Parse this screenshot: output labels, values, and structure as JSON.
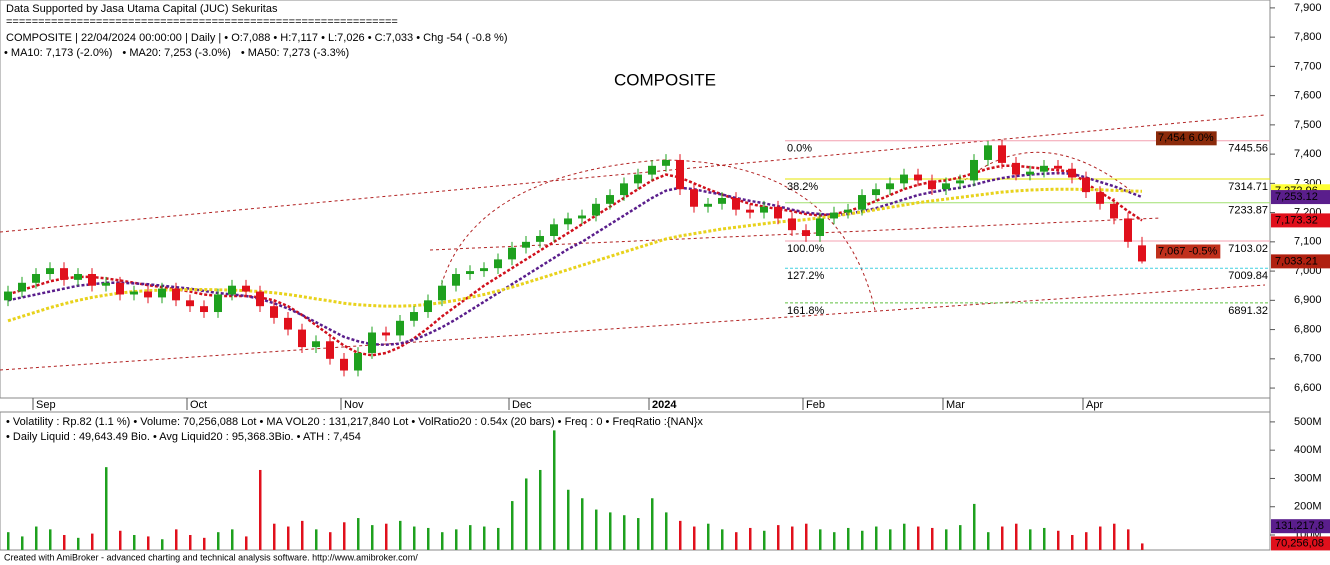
{
  "chart_data": [
    {
      "type": "candlestick",
      "title": "COMPOSITE",
      "header": [
        "Data Supported by Jasa Utama Capital (JUC) Sekuritas",
        "=============================================================",
        "COMPOSITE | 22/04/2024 00:00:00 | Daily | • O:7,088 • H:7,117 • L:7,026 • C:7,033 • Chg -54 ( -0.8 %)"
      ],
      "footer": "Created with AmiBroker - advanced charting and technical analysis software. http://www.amibroker.com/",
      "up_color": "#1ea01e",
      "down_color": "#e0101c",
      "categories": [
        null,
        null,
        "Sep",
        null,
        null,
        null,
        null,
        null,
        null,
        null,
        null,
        null,
        null,
        "Oct",
        null,
        null,
        null,
        null,
        null,
        null,
        null,
        null,
        null,
        null,
        "Nov",
        null,
        null,
        null,
        null,
        null,
        null,
        null,
        null,
        null,
        null,
        null,
        "Dec",
        null,
        null,
        null,
        null,
        null,
        null,
        null,
        null,
        null,
        "2024",
        null,
        null,
        null,
        null,
        null,
        null,
        null,
        null,
        null,
        null,
        "Feb",
        null,
        null,
        null,
        null,
        null,
        null,
        null,
        null,
        null,
        "Mar",
        null,
        null,
        null,
        null,
        null,
        null,
        null,
        null,
        null,
        "Apr",
        null,
        null,
        null,
        null
      ],
      "open": [
        6900,
        6930,
        6960,
        6990,
        7010,
        6970,
        6990,
        6950,
        6960,
        6920,
        6930,
        6910,
        6940,
        6900,
        6880,
        6860,
        6920,
        6950,
        6930,
        6880,
        6840,
        6800,
        6740,
        6760,
        6700,
        6660,
        6720,
        6790,
        6780,
        6830,
        6860,
        6900,
        6950,
        6990,
        7000,
        7010,
        7040,
        7080,
        7100,
        7120,
        7160,
        7180,
        7190,
        7230,
        7260,
        7300,
        7330,
        7360,
        7380,
        7280,
        7220,
        7230,
        7250,
        7210,
        7200,
        7220,
        7180,
        7140,
        7120,
        7180,
        7200,
        7210,
        7260,
        7280,
        7300,
        7330,
        7310,
        7280,
        7300,
        7310,
        7380,
        7430,
        7370,
        7330,
        7340,
        7360,
        7350,
        7320,
        7270,
        7230,
        7180,
        7088
      ],
      "high": [
        6950,
        6980,
        7010,
        7030,
        7030,
        7010,
        7010,
        6980,
        6980,
        6950,
        6950,
        6960,
        6960,
        6920,
        6900,
        6940,
        6970,
        6970,
        6950,
        6900,
        6860,
        6820,
        6780,
        6780,
        6720,
        6740,
        6810,
        6810,
        6850,
        6880,
        6920,
        6970,
        7010,
        7020,
        7030,
        7060,
        7100,
        7120,
        7140,
        7180,
        7200,
        7210,
        7250,
        7280,
        7320,
        7350,
        7380,
        7400,
        7400,
        7300,
        7250,
        7270,
        7270,
        7230,
        7240,
        7240,
        7200,
        7160,
        7200,
        7220,
        7230,
        7280,
        7300,
        7320,
        7350,
        7350,
        7330,
        7320,
        7330,
        7400,
        7445,
        7450,
        7390,
        7360,
        7380,
        7380,
        7370,
        7340,
        7290,
        7250,
        7200,
        7117
      ],
      "low": [
        6880,
        6910,
        6940,
        6970,
        6950,
        6950,
        6930,
        6930,
        6900,
        6900,
        6890,
        6890,
        6880,
        6860,
        6840,
        6840,
        6900,
        6910,
        6860,
        6820,
        6780,
        6720,
        6720,
        6680,
        6640,
        6640,
        6700,
        6760,
        6760,
        6810,
        6840,
        6880,
        6930,
        6970,
        6980,
        6990,
        7020,
        7060,
        7080,
        7100,
        7140,
        7160,
        7170,
        7210,
        7240,
        7280,
        7310,
        7340,
        7260,
        7200,
        7200,
        7210,
        7190,
        7180,
        7180,
        7160,
        7120,
        7100,
        7100,
        7160,
        7180,
        7190,
        7240,
        7260,
        7280,
        7290,
        7260,
        7260,
        7280,
        7290,
        7360,
        7350,
        7310,
        7310,
        7320,
        7330,
        7300,
        7250,
        7210,
        7160,
        7080,
        7026
      ],
      "close": [
        6930,
        6960,
        6990,
        7010,
        6970,
        6990,
        6950,
        6960,
        6920,
        6930,
        6910,
        6940,
        6900,
        6880,
        6860,
        6920,
        6950,
        6930,
        6880,
        6840,
        6800,
        6740,
        6760,
        6700,
        6660,
        6720,
        6790,
        6780,
        6830,
        6860,
        6900,
        6950,
        6990,
        7000,
        7010,
        7040,
        7080,
        7100,
        7120,
        7160,
        7180,
        7190,
        7230,
        7260,
        7300,
        7330,
        7360,
        7380,
        7280,
        7220,
        7230,
        7250,
        7210,
        7200,
        7220,
        7180,
        7140,
        7120,
        7180,
        7200,
        7210,
        7260,
        7280,
        7300,
        7330,
        7310,
        7280,
        7300,
        7310,
        7380,
        7430,
        7370,
        7330,
        7340,
        7360,
        7350,
        7320,
        7270,
        7230,
        7180,
        7100,
        7033
      ],
      "series": [
        {
          "name": "• MA10: 7,173 (-2.0%)",
          "color": "#d0101c",
          "values": [
            6920,
            6935,
            6950,
            6965,
            6975,
            6980,
            6980,
            6975,
            6968,
            6960,
            6952,
            6945,
            6938,
            6930,
            6920,
            6915,
            6915,
            6915,
            6910,
            6900,
            6880,
            6850,
            6815,
            6780,
            6745,
            6720,
            6712,
            6720,
            6740,
            6770,
            6805,
            6845,
            6880,
            6915,
            6950,
            6980,
            7010,
            7040,
            7070,
            7100,
            7130,
            7160,
            7190,
            7220,
            7250,
            7280,
            7310,
            7330,
            7320,
            7300,
            7280,
            7262,
            7245,
            7230,
            7220,
            7212,
            7205,
            7195,
            7190,
            7195,
            7205,
            7220,
            7240,
            7260,
            7280,
            7295,
            7305,
            7310,
            7320,
            7335,
            7350,
            7360,
            7360,
            7355,
            7350,
            7345,
            7340,
            7300,
            7270,
            7240,
            7205,
            7173
          ]
        },
        {
          "name": "• MA20: 7,253 (-3.0%)",
          "color": "#5a1e8c",
          "values": [
            6900,
            6910,
            6920,
            6930,
            6940,
            6950,
            6955,
            6960,
            6960,
            6958,
            6955,
            6950,
            6945,
            6940,
            6932,
            6925,
            6920,
            6915,
            6905,
            6890,
            6872,
            6850,
            6825,
            6800,
            6775,
            6760,
            6750,
            6748,
            6752,
            6765,
            6785,
            6808,
            6835,
            6865,
            6895,
            6925,
            6955,
            6985,
            7015,
            7045,
            7075,
            7100,
            7130,
            7160,
            7190,
            7220,
            7250,
            7275,
            7285,
            7280,
            7270,
            7262,
            7250,
            7240,
            7232,
            7222,
            7210,
            7200,
            7195,
            7192,
            7195,
            7205,
            7215,
            7230,
            7245,
            7260,
            7270,
            7278,
            7285,
            7295,
            7308,
            7318,
            7325,
            7330,
            7333,
            7335,
            7333,
            7320,
            7305,
            7290,
            7272,
            7253
          ]
        },
        {
          "name": "• MA50: 7,273 (-3.3%)",
          "color": "#e8d21c",
          "values": [
            6830,
            6845,
            6860,
            6875,
            6888,
            6900,
            6910,
            6918,
            6925,
            6930,
            6933,
            6935,
            6936,
            6937,
            6937,
            6936,
            6935,
            6933,
            6930,
            6926,
            6920,
            6913,
            6905,
            6898,
            6890,
            6885,
            6882,
            6880,
            6880,
            6882,
            6886,
            6892,
            6900,
            6910,
            6920,
            6932,
            6945,
            6960,
            6975,
            6990,
            7005,
            7020,
            7035,
            7050,
            7065,
            7080,
            7095,
            7110,
            7120,
            7128,
            7136,
            7144,
            7150,
            7156,
            7162,
            7168,
            7172,
            7176,
            7182,
            7188,
            7195,
            7202,
            7210,
            7218,
            7226,
            7234,
            7240,
            7246,
            7252,
            7258,
            7264,
            7270,
            7274,
            7277,
            7279,
            7280,
            7280,
            7279,
            7278,
            7276,
            7274,
            7273
          ]
        }
      ],
      "ylim": [
        6566,
        7927
      ],
      "yticks": [
        {
          "value": 6600,
          "label": "6,600"
        },
        {
          "value": 6700,
          "label": "6,700"
        },
        {
          "value": 6800,
          "label": "6,800"
        },
        {
          "value": 6900,
          "label": "6,900"
        },
        {
          "value": 7000,
          "label": "7,000"
        },
        {
          "value": 7100,
          "label": "7,100"
        },
        {
          "value": 7200,
          "label": "7,200"
        },
        {
          "value": 7300,
          "label": "7,300"
        },
        {
          "value": 7400,
          "label": "7,400"
        },
        {
          "value": 7500,
          "label": "7,500"
        },
        {
          "value": 7600,
          "label": "7,600"
        },
        {
          "value": 7700,
          "label": "7,700"
        },
        {
          "value": 7800,
          "label": "7,800"
        },
        {
          "value": 7900,
          "label": "7,900"
        }
      ],
      "fib_levels": [
        {
          "label": "0.0%",
          "value": 7445.56,
          "color": "#f4a0b0"
        },
        {
          "label": "38.2%",
          "value": 7314.71,
          "color": "#e6e600"
        },
        {
          "value": 7233.87,
          "color": "#a0e070"
        },
        {
          "label": "100.0%",
          "value": 7103.02,
          "color": "#f4a0b0"
        },
        {
          "label": "127.2%",
          "value": 7009.84,
          "color": "#40d0e0"
        },
        {
          "label": "161.8%",
          "value": 6891.32,
          "color": "#60c040"
        }
      ],
      "annotations": [
        {
          "label": "7,454 6.0%",
          "value": 7454,
          "color": "#8b2a0a"
        },
        {
          "label": "7,067 -0.5%",
          "value": 7067,
          "color": "#c0301c"
        }
      ],
      "axis_labels": [
        {
          "label": "7,272.96",
          "value": 7272.96,
          "color": "#ffff33"
        },
        {
          "label": "7,253.12",
          "value": 7253.12,
          "color": "#5a1e8c"
        },
        {
          "label": "7,173.32",
          "value": 7173.32,
          "color": "#e0101c"
        },
        {
          "label": "7,033.21",
          "value": 7033.21,
          "color": "#b02010"
        }
      ]
    },
    {
      "type": "bar",
      "header": [
        "• Volatility : Rp.82 (1.1 %) • Volume: 70,256,088 Lot • MA VOL20 : 131,217,840 Lot • VolRatio20 : 0.54x (20 bars) • Freq : 0 • FreqRatio :{NAN}x",
        "• Daily Liquid : 49,643.49 Bio. • Avg Liquid20 : 95,368.3Bio. • ATH : 7,454"
      ],
      "values": [
        110000000,
        95000000,
        130000000,
        120000000,
        100000000,
        90000000,
        105000000,
        340000000,
        115000000,
        100000000,
        95000000,
        85000000,
        120000000,
        100000000,
        90000000,
        110000000,
        120000000,
        95000000,
        330000000,
        140000000,
        130000000,
        150000000,
        120000000,
        110000000,
        145000000,
        160000000,
        135000000,
        140000000,
        150000000,
        130000000,
        125000000,
        110000000,
        120000000,
        135000000,
        130000000,
        125000000,
        220000000,
        300000000,
        330000000,
        470000000,
        260000000,
        230000000,
        190000000,
        180000000,
        170000000,
        160000000,
        230000000,
        180000000,
        150000000,
        130000000,
        140000000,
        120000000,
        110000000,
        125000000,
        115000000,
        135000000,
        130000000,
        140000000,
        120000000,
        110000000,
        125000000,
        115000000,
        130000000,
        120000000,
        140000000,
        130000000,
        125000000,
        120000000,
        135000000,
        210000000,
        110000000,
        130000000,
        140000000,
        120000000,
        125000000,
        115000000,
        100000000,
        110000000,
        130000000,
        140000000,
        120000000,
        70256088
      ],
      "ylim": [
        47000000,
        535000000
      ],
      "yticks": [
        {
          "value": 100000000,
          "label": "100M"
        },
        {
          "value": 200000000,
          "label": "200M"
        },
        {
          "value": 300000000,
          "label": "300M"
        },
        {
          "value": 400000000,
          "label": "400M"
        },
        {
          "value": 500000000,
          "label": "500M"
        }
      ],
      "axis_labels": [
        {
          "label": "131,217,8",
          "value": 131217840,
          "color": "#5a1e8c"
        },
        {
          "label": "70,256,08",
          "value": 70256088,
          "color": "#e0101c"
        }
      ]
    }
  ]
}
